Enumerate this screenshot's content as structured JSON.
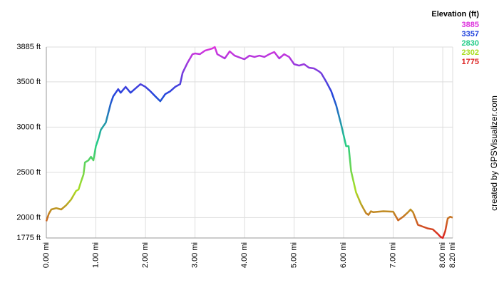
{
  "chart_data": {
    "type": "line",
    "xlim": [
      0,
      8.2
    ],
    "ylim": [
      1775,
      3885
    ],
    "xticks": [
      {
        "value": 0,
        "label": "0.00 mi"
      },
      {
        "value": 1,
        "label": "1.00 mi"
      },
      {
        "value": 2,
        "label": "2.00 mi"
      },
      {
        "value": 3,
        "label": "3.00 mi"
      },
      {
        "value": 4,
        "label": "4.00 mi"
      },
      {
        "value": 5,
        "label": "5.00 mi"
      },
      {
        "value": 6,
        "label": "6.00 mi"
      },
      {
        "value": 7,
        "label": "7.00 mi"
      },
      {
        "value": 8,
        "label": "8.00 mi"
      },
      {
        "value": 8.2,
        "label": "8.20 mi"
      }
    ],
    "yticks": [
      {
        "value": 1775,
        "label": "1775 ft"
      },
      {
        "value": 2000,
        "label": "2000 ft"
      },
      {
        "value": 2500,
        "label": "2500 ft"
      },
      {
        "value": 3000,
        "label": "3000 ft"
      },
      {
        "value": 3500,
        "label": "3500 ft"
      },
      {
        "value": 3885,
        "label": "3885 ft"
      }
    ],
    "grid": true,
    "legend": {
      "title": "Elevation (ft)",
      "entries": [
        {
          "value": 3885,
          "color": "#dd33dd"
        },
        {
          "value": 3357,
          "color": "#2244dd"
        },
        {
          "value": 2830,
          "color": "#22cc88"
        },
        {
          "value": 2302,
          "color": "#aadd22"
        },
        {
          "value": 1775,
          "color": "#dd2222"
        }
      ]
    },
    "credit": "created by GPSVisualizer.com",
    "x": [
      0,
      0.05,
      0.1,
      0.2,
      0.3,
      0.4,
      0.5,
      0.6,
      0.65,
      0.7,
      0.75,
      0.78,
      0.85,
      0.9,
      0.95,
      1.0,
      1.05,
      1.1,
      1.2,
      1.3,
      1.35,
      1.45,
      1.5,
      1.6,
      1.7,
      1.8,
      1.9,
      2.0,
      2.1,
      2.2,
      2.3,
      2.4,
      2.5,
      2.6,
      2.7,
      2.75,
      2.85,
      2.95,
      3.0,
      3.1,
      3.2,
      3.35,
      3.4,
      3.45,
      3.55,
      3.6,
      3.7,
      3.8,
      3.95,
      4.0,
      4.1,
      4.2,
      4.3,
      4.4,
      4.5,
      4.6,
      4.7,
      4.8,
      4.9,
      5.0,
      5.1,
      5.2,
      5.3,
      5.4,
      5.5,
      5.55,
      5.65,
      5.75,
      5.85,
      5.95,
      6.05,
      6.1,
      6.15,
      6.25,
      6.35,
      6.45,
      6.5,
      6.55,
      6.6,
      6.8,
      7.0,
      7.1,
      7.2,
      7.3,
      7.35,
      7.4,
      7.5,
      7.6,
      7.7,
      7.8,
      7.9,
      7.95,
      8.0,
      8.05,
      8.1,
      8.15,
      8.2
    ],
    "series": [
      {
        "name": "Elevation",
        "values": [
          1960,
          2043,
          2090,
          2105,
          2090,
          2137,
          2200,
          2295,
          2310,
          2397,
          2476,
          2610,
          2633,
          2672,
          2633,
          2790,
          2870,
          2970,
          3050,
          3263,
          3340,
          3420,
          3380,
          3445,
          3380,
          3428,
          3475,
          3445,
          3396,
          3340,
          3286,
          3365,
          3396,
          3445,
          3475,
          3600,
          3712,
          3806,
          3814,
          3806,
          3845,
          3869,
          3885,
          3806,
          3775,
          3759,
          3837,
          3790,
          3759,
          3751,
          3790,
          3775,
          3790,
          3775,
          3806,
          3830,
          3759,
          3806,
          3775,
          3696,
          3680,
          3696,
          3657,
          3649,
          3617,
          3594,
          3500,
          3396,
          3240,
          3027,
          2790,
          2790,
          2515,
          2279,
          2150,
          2050,
          2030,
          2070,
          2060,
          2070,
          2065,
          1970,
          2010,
          2060,
          2090,
          2060,
          1920,
          1900,
          1880,
          1870,
          1820,
          1790,
          1775,
          1850,
          1990,
          2010,
          2000
        ]
      }
    ]
  }
}
